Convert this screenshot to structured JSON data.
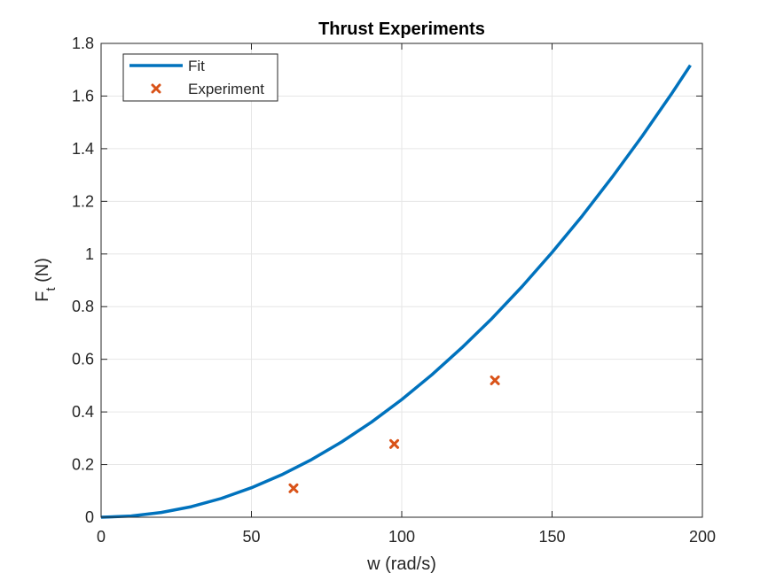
{
  "chart_data": {
    "type": "line",
    "title": "Thrust Experiments",
    "xlabel": "w (rad/s)",
    "ylabel": {
      "main": "F",
      "subscript": "t",
      "unit": " (N)"
    },
    "xlim": [
      0,
      200
    ],
    "ylim": [
      0,
      1.8
    ],
    "xticks": [
      0,
      50,
      100,
      150,
      200
    ],
    "xtick_labels": [
      "0",
      "50",
      "100",
      "150",
      "200"
    ],
    "yticks": [
      0,
      0.2,
      0.4,
      0.6,
      0.8,
      1,
      1.2,
      1.4,
      1.6,
      1.8
    ],
    "ytick_labels": [
      "0",
      "0.2",
      "0.4",
      "0.6",
      "0.8",
      "1",
      "1.2",
      "1.4",
      "1.6",
      "1.8"
    ],
    "grid": true,
    "legend_position": "top-left",
    "series": [
      {
        "name": "Fit",
        "kind": "line",
        "color": "#0072BD",
        "x": [
          0,
          10,
          20,
          30,
          40,
          50,
          60,
          70,
          80,
          90,
          100,
          110,
          120,
          130,
          140,
          150,
          160,
          170,
          180,
          190,
          196
        ],
        "y": [
          0,
          0.0045,
          0.018,
          0.04,
          0.0715,
          0.112,
          0.161,
          0.219,
          0.286,
          0.362,
          0.447,
          0.541,
          0.644,
          0.755,
          0.876,
          1.006,
          1.144,
          1.292,
          1.448,
          1.613,
          1.717
        ]
      },
      {
        "name": "Experiment",
        "kind": "scatter",
        "marker": "x",
        "color": "#D95319",
        "x": [
          64,
          97.5,
          131
        ],
        "y": [
          0.11,
          0.278,
          0.52
        ]
      }
    ]
  }
}
